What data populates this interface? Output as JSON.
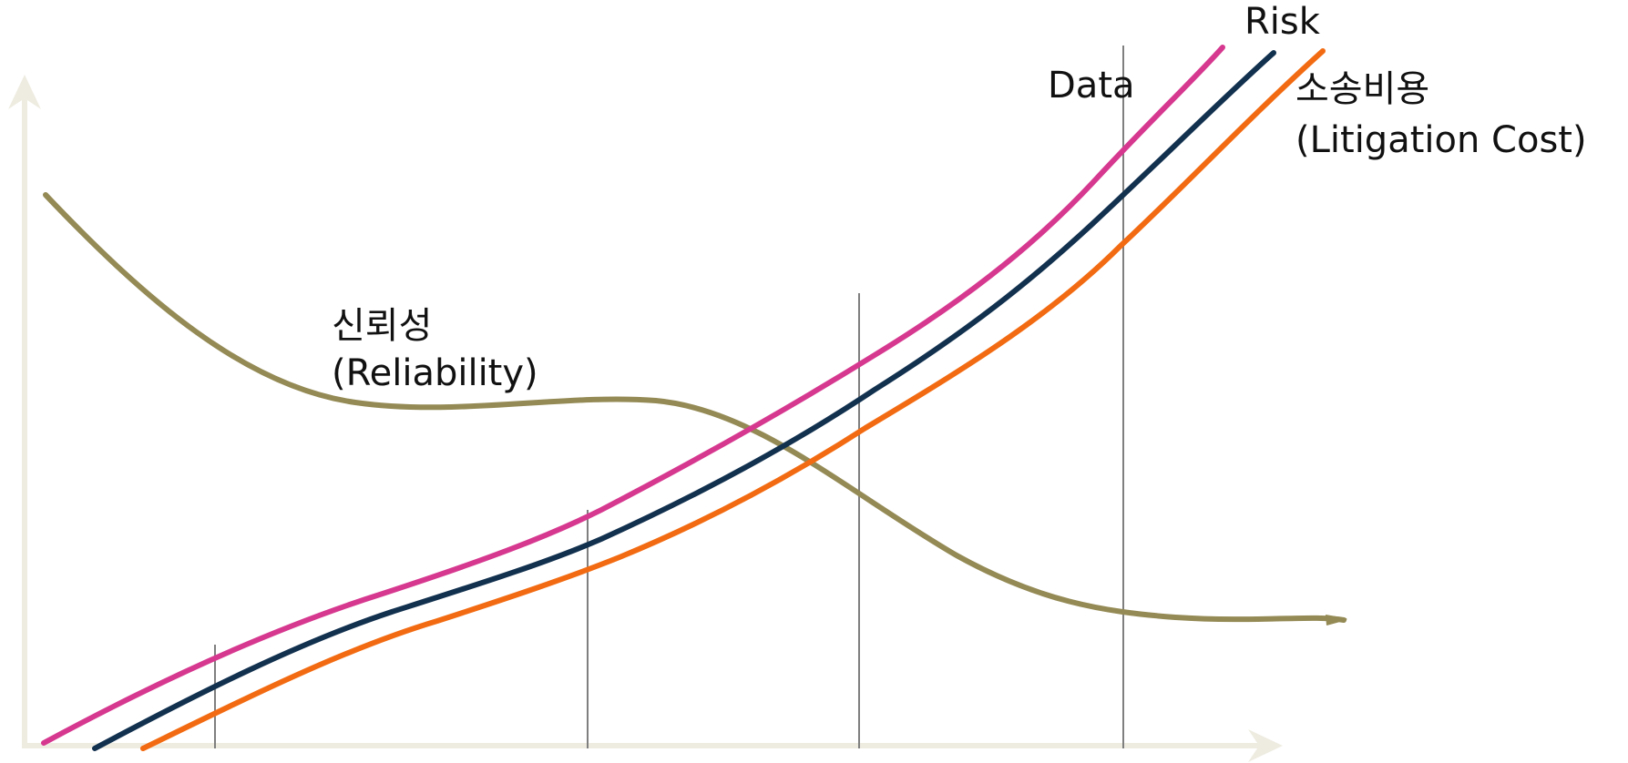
{
  "labels": {
    "risk": "Risk",
    "data": "Data",
    "litigation_cost_ko": "소송비용",
    "litigation_cost_en": "(Litigation Cost)",
    "reliability_ko": "신뢰성",
    "reliability_en": "(Reliability)"
  },
  "colors": {
    "axis": "#eeece1",
    "data_curve": "#d6388f",
    "risk_curve": "#12314f",
    "litigation_cost_curve": "#f26b12",
    "reliability_curve": "#948a55",
    "guide_lines": "#7f7f7f"
  }
}
